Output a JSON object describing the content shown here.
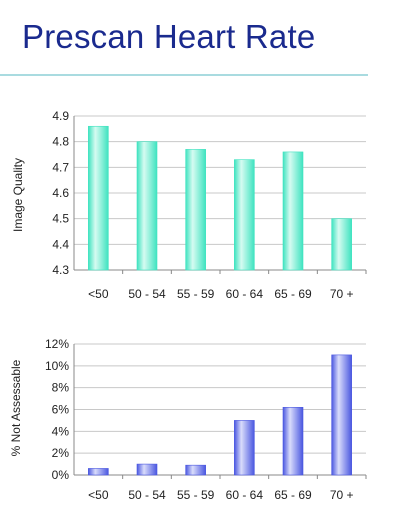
{
  "page": {
    "title": "Prescan Heart Rate"
  },
  "colors": {
    "title": "#1a2a8e",
    "rule": "#a9dbe0",
    "grid": "#c8c8c8",
    "axis": "#888888"
  },
  "chart_data": [
    {
      "type": "bar",
      "categories": [
        "<50",
        "50 - 54",
        "55 - 59",
        "60 - 64",
        "65 - 69",
        "70 +"
      ],
      "values": [
        4.86,
        4.8,
        4.77,
        4.73,
        4.76,
        4.5
      ],
      "xlabel": "",
      "ylabel": "Image Quality",
      "ylim": [
        4.3,
        4.9
      ],
      "yticks": [
        "4.3",
        "4.4",
        "4.5",
        "4.6",
        "4.7",
        "4.8",
        "4.9"
      ],
      "grid": true,
      "bar_color": "#3fe3c0",
      "bar_color_light": "#d6fbf1"
    },
    {
      "type": "bar",
      "categories": [
        "<50",
        "50 - 54",
        "55 - 59",
        "60 - 64",
        "65 - 69",
        "70 +"
      ],
      "values": [
        0.6,
        1.0,
        0.9,
        5.0,
        6.2,
        11.0
      ],
      "xlabel": "",
      "ylabel": "% Not Assessable",
      "ylim": [
        0,
        12
      ],
      "yticks": [
        "0%",
        "2%",
        "4%",
        "6%",
        "8%",
        "10%",
        "12%"
      ],
      "grid": true,
      "bar_color": "#4a57e0",
      "bar_color_light": "#d9dcfb"
    }
  ]
}
